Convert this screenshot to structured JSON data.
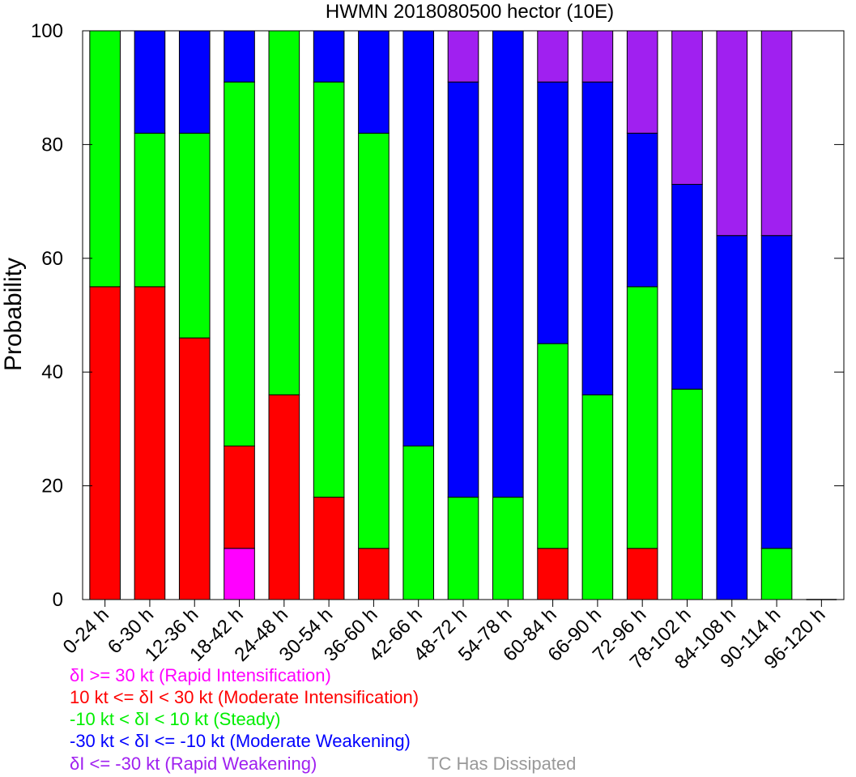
{
  "chart_data": {
    "type": "bar",
    "stacked": true,
    "title": "HWMN 2018080500 hector (10E)",
    "ylabel": "Probability",
    "xlabel": "",
    "ylim": [
      0,
      100
    ],
    "yticks": [
      0,
      20,
      40,
      60,
      80,
      100
    ],
    "grid": false,
    "categories": [
      "0-24 h",
      "6-30 h",
      "12-36 h",
      "18-42 h",
      "24-48 h",
      "30-54 h",
      "36-60 h",
      "42-66 h",
      "48-72 h",
      "54-78 h",
      "60-84 h",
      "66-90 h",
      "72-96 h",
      "78-102 h",
      "84-108 h",
      "90-114 h",
      "96-120 h"
    ],
    "series": [
      {
        "name": "δI >= 30 kt (Rapid Intensification)",
        "color": "#ff00ff",
        "values": [
          0,
          0,
          0,
          9,
          0,
          0,
          0,
          0,
          0,
          0,
          0,
          0,
          0,
          0,
          0,
          0,
          0
        ]
      },
      {
        "name": "10 kt <= δI < 30 kt (Moderate Intensification)",
        "color": "#ff0000",
        "values": [
          55,
          55,
          46,
          18,
          36,
          18,
          9,
          0,
          0,
          0,
          9,
          0,
          9,
          0,
          0,
          0,
          0
        ]
      },
      {
        "name": "-10 kt < δI < 10 kt (Steady)",
        "color": "#00ff00",
        "values": [
          45,
          27,
          36,
          64,
          64,
          73,
          73,
          27,
          18,
          18,
          36,
          36,
          46,
          37,
          0,
          9,
          0
        ]
      },
      {
        "name": "-30 kt < δI <= -10 kt (Moderate Weakening)",
        "color": "#0000ff",
        "values": [
          0,
          18,
          18,
          9,
          0,
          9,
          18,
          73,
          73,
          82,
          46,
          55,
          27,
          36,
          64,
          55,
          0
        ]
      },
      {
        "name": "δI <= -30 kt (Rapid Weakening)",
        "color": "#a020f0",
        "values": [
          0,
          0,
          0,
          0,
          0,
          0,
          0,
          0,
          9,
          0,
          9,
          9,
          18,
          27,
          36,
          36,
          0
        ]
      }
    ],
    "legend_placement": "bottom-left",
    "legend": [
      {
        "label": "δI >= 30 kt (Rapid Intensification)",
        "color": "#ff00ff"
      },
      {
        "label": "10 kt <= δI < 30 kt (Moderate Intensification)",
        "color": "#ff0000"
      },
      {
        "label": "-10 kt < δI < 10 kt (Steady)",
        "color": "#00ff00"
      },
      {
        "label": "-30 kt < δI <= -10 kt (Moderate Weakening)",
        "color": "#0000ff"
      },
      {
        "label": "δI <= -30 kt (Rapid Weakening)",
        "color": "#a020f0"
      }
    ],
    "note": {
      "label": "TC Has Dissipated",
      "color": "#999999"
    }
  }
}
